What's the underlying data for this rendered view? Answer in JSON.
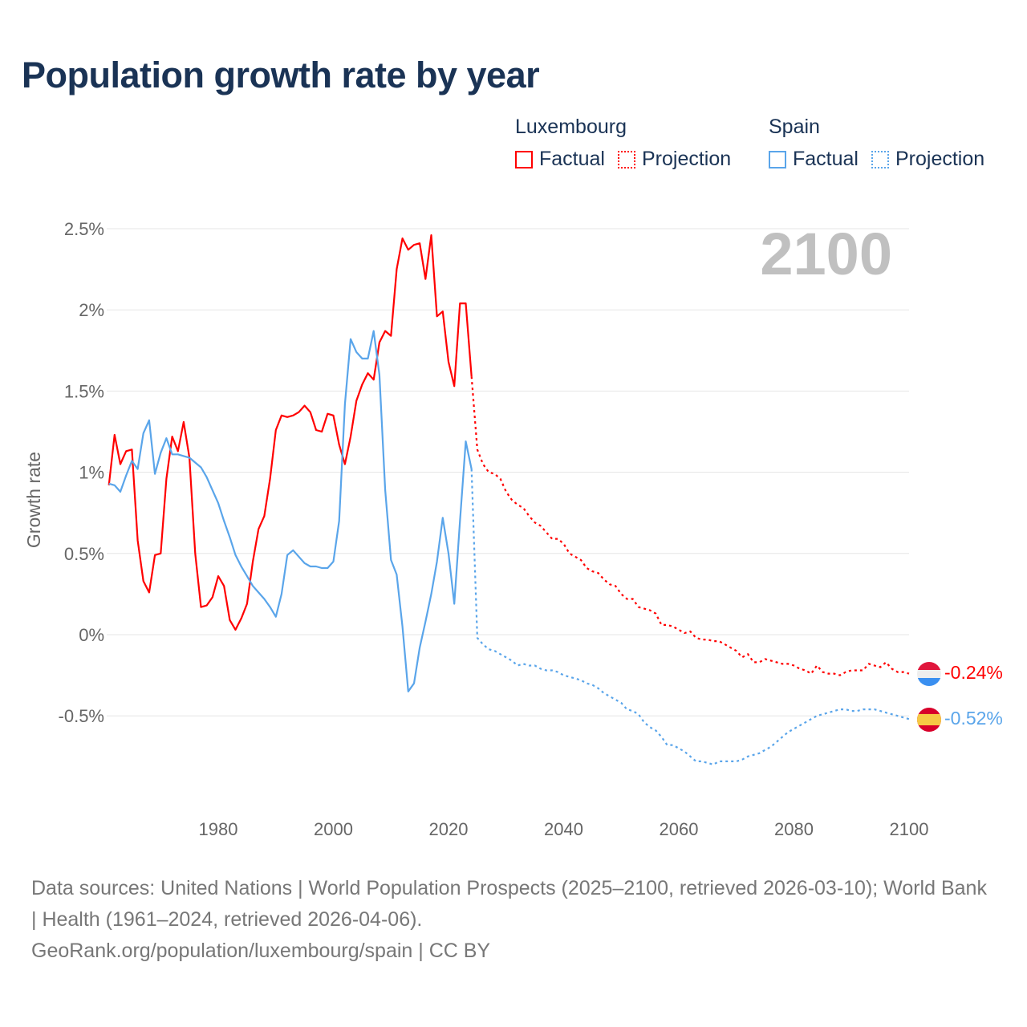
{
  "title": "Population growth rate by year",
  "legend": {
    "groups": [
      {
        "name": "Luxembourg",
        "factual": "Factual",
        "projection": "Projection",
        "color": "#ff0000"
      },
      {
        "name": "Spain",
        "factual": "Factual",
        "projection": "Projection",
        "color": "#5aa5ea"
      }
    ]
  },
  "year_display": "2100",
  "footer": {
    "sources": "Data sources: United Nations | World Population Prospects (2025–2100, retrieved 2026-03-10); World Bank | Health (1961–2024, retrieved 2026-04-06).",
    "link": "GeoRank.org/population/luxembourg/spain | CC BY"
  },
  "chart_data": {
    "type": "line",
    "title": "Population growth rate by year",
    "xlabel": "",
    "ylabel": "Growth rate",
    "xlim": [
      1961,
      2100
    ],
    "ylim": [
      -1.0,
      2.5
    ],
    "grid": true,
    "legend_position": "top-right",
    "x_ticks": [
      1980,
      2000,
      2020,
      2040,
      2060,
      2080,
      2100
    ],
    "y_ticks": [
      {
        "value": 2.5,
        "label": "2.5%"
      },
      {
        "value": 2,
        "label": "2%"
      },
      {
        "value": 1.5,
        "label": "1.5%"
      },
      {
        "value": 1,
        "label": "1%"
      },
      {
        "value": 0.5,
        "label": "0.5%"
      },
      {
        "value": 0,
        "label": "0%"
      },
      {
        "value": -0.5,
        "label": "-0.5%"
      }
    ],
    "series": [
      {
        "name": "Luxembourg",
        "color": "#ff0000",
        "flag": "luxembourg-flag",
        "end_label": "-0.24%",
        "factual": {
          "start_year": 1961,
          "values": [
            0.92,
            1.23,
            1.05,
            1.13,
            1.14,
            0.58,
            0.33,
            0.26,
            0.49,
            0.5,
            0.96,
            1.22,
            1.13,
            1.31,
            1.09,
            0.5,
            0.17,
            0.18,
            0.23,
            0.36,
            0.3,
            0.09,
            0.03,
            0.1,
            0.19,
            0.45,
            0.65,
            0.73,
            0.96,
            1.26,
            1.35,
            1.34,
            1.35,
            1.37,
            1.41,
            1.37,
            1.26,
            1.25,
            1.36,
            1.35,
            1.17,
            1.05,
            1.22,
            1.44,
            1.54,
            1.61,
            1.57,
            1.8,
            1.87,
            1.84,
            2.25,
            2.44,
            2.37,
            2.4,
            2.41,
            2.19,
            2.46,
            1.96,
            1.99,
            1.68,
            1.53,
            2.04,
            2.04,
            1.59
          ]
        },
        "projection": {
          "start_year": 2025,
          "values": [
            1.14,
            1.05,
            1.0,
            0.99,
            0.96,
            0.88,
            0.83,
            0.8,
            0.78,
            0.73,
            0.69,
            0.67,
            0.63,
            0.59,
            0.59,
            0.56,
            0.5,
            0.48,
            0.46,
            0.41,
            0.39,
            0.38,
            0.34,
            0.31,
            0.3,
            0.25,
            0.22,
            0.22,
            0.17,
            0.16,
            0.15,
            0.13,
            0.06,
            0.06,
            0.05,
            0.03,
            0.01,
            0.02,
            -0.02,
            -0.03,
            -0.03,
            -0.04,
            -0.04,
            -0.06,
            -0.08,
            -0.1,
            -0.14,
            -0.12,
            -0.17,
            -0.17,
            -0.15,
            -0.16,
            -0.17,
            -0.18,
            -0.18,
            -0.19,
            -0.21,
            -0.22,
            -0.24,
            -0.19,
            -0.23,
            -0.24,
            -0.24,
            -0.25,
            -0.23,
            -0.22,
            -0.22,
            -0.22,
            -0.18,
            -0.19,
            -0.2,
            -0.17,
            -0.21,
            -0.23,
            -0.23,
            -0.24
          ]
        }
      },
      {
        "name": "Spain",
        "color": "#5aa5ea",
        "flag": "spain-flag",
        "end_label": "-0.52%",
        "factual": {
          "start_year": 1961,
          "values": [
            0.93,
            0.92,
            0.88,
            0.98,
            1.07,
            1.02,
            1.24,
            1.32,
            0.99,
            1.12,
            1.21,
            1.11,
            1.11,
            1.1,
            1.09,
            1.06,
            1.03,
            0.97,
            0.89,
            0.81,
            0.7,
            0.6,
            0.49,
            0.42,
            0.36,
            0.3,
            0.26,
            0.22,
            0.17,
            0.11,
            0.25,
            0.49,
            0.52,
            0.48,
            0.44,
            0.42,
            0.42,
            0.41,
            0.41,
            0.45,
            0.7,
            1.42,
            1.82,
            1.74,
            1.7,
            1.7,
            1.87,
            1.6,
            0.89,
            0.46,
            0.37,
            0.05,
            -0.35,
            -0.3,
            -0.08,
            0.08,
            0.25,
            0.45,
            0.72,
            0.5,
            0.19,
            0.7,
            1.19,
            1.02
          ]
        },
        "projection": {
          "start_year": 2025,
          "values": [
            -0.02,
            -0.06,
            -0.09,
            -0.1,
            -0.12,
            -0.14,
            -0.16,
            -0.19,
            -0.18,
            -0.19,
            -0.19,
            -0.21,
            -0.22,
            -0.22,
            -0.23,
            -0.25,
            -0.26,
            -0.27,
            -0.28,
            -0.3,
            -0.31,
            -0.33,
            -0.36,
            -0.38,
            -0.4,
            -0.42,
            -0.46,
            -0.47,
            -0.49,
            -0.54,
            -0.57,
            -0.59,
            -0.63,
            -0.68,
            -0.68,
            -0.7,
            -0.72,
            -0.75,
            -0.78,
            -0.78,
            -0.79,
            -0.8,
            -0.78,
            -0.78,
            -0.78,
            -0.78,
            -0.77,
            -0.75,
            -0.74,
            -0.73,
            -0.71,
            -0.69,
            -0.66,
            -0.63,
            -0.6,
            -0.58,
            -0.56,
            -0.54,
            -0.52,
            -0.5,
            -0.49,
            -0.48,
            -0.47,
            -0.46,
            -0.46,
            -0.47,
            -0.47,
            -0.46,
            -0.46,
            -0.46,
            -0.47,
            -0.48,
            -0.49,
            -0.5,
            -0.51,
            -0.52
          ]
        }
      }
    ]
  }
}
